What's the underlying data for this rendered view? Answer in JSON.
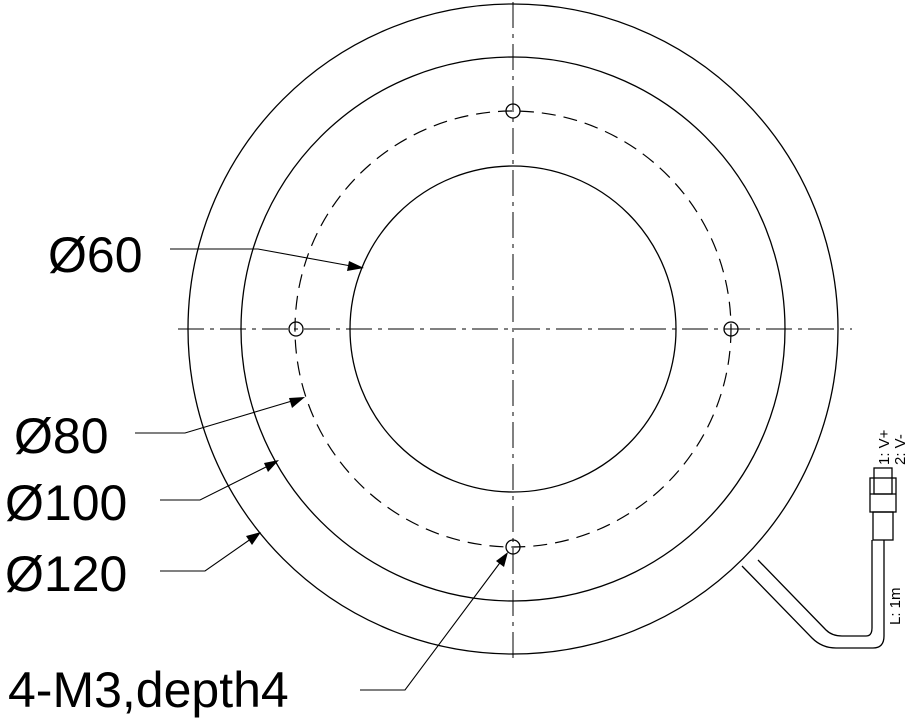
{
  "dimensions": {
    "d60": "Ø60",
    "d80": "Ø80",
    "d100": "Ø100",
    "d120": "Ø120",
    "holes": "4-M3,depth4"
  },
  "connector": {
    "pin1": "1: V+",
    "pin2": "2: V-",
    "cable_length": "L: 1m"
  }
}
